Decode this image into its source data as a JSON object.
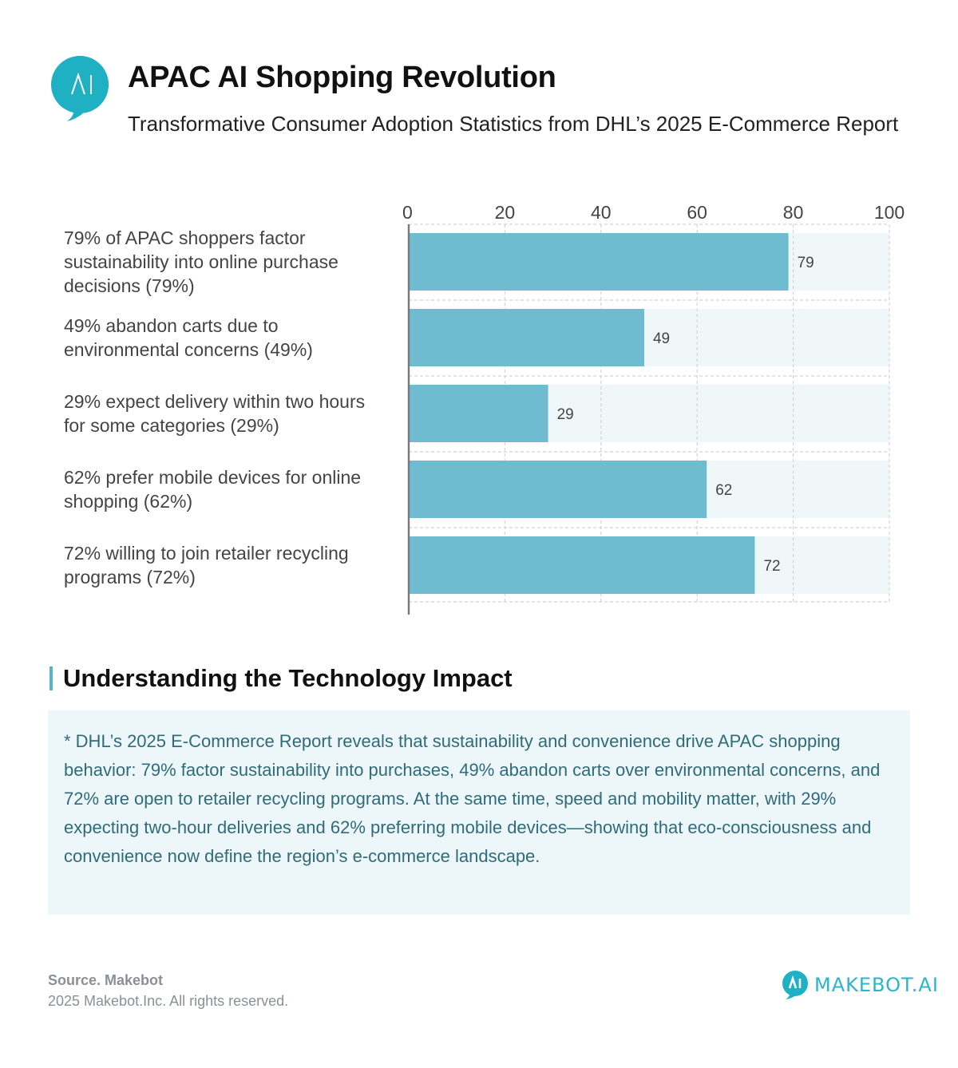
{
  "header": {
    "logo_icon": "ai-speech-bubble-icon",
    "logo_text": "AI",
    "title": "APAC AI Shopping Revolution",
    "subtitle": "Transformative Consumer Adoption Statistics from DHL’s 2025 E-Commerce Report"
  },
  "colors": {
    "bar": "#6fbbd0",
    "bar_track": "#eff7f9",
    "accent": "#5ab3c8",
    "brand": "#2bb5c8",
    "note_text": "#2f6b7a",
    "note_bg": "#edf6f8"
  },
  "chart_data": {
    "type": "bar",
    "orientation": "horizontal",
    "title": "",
    "xlabel": "",
    "ylabel": "",
    "xlim": [
      0,
      100
    ],
    "x_ticks": [
      "0",
      "20",
      "40",
      "60",
      "80",
      "100"
    ],
    "x_tick_values": [
      0,
      20,
      40,
      60,
      80,
      100
    ],
    "grid": true,
    "axis_position": "top",
    "categories": [
      [
        "79% of APAC shoppers factor",
        "sustainability into online purchase",
        "decisions (79%)"
      ],
      [
        "49% abandon carts due to",
        "environmental concerns (49%)"
      ],
      [
        "29% expect delivery within two hours",
        "for some categories (29%)"
      ],
      [
        "62% prefer mobile devices for online",
        "shopping (62%)"
      ],
      [
        "72% willing to join retailer recycling",
        "programs (72%)"
      ]
    ],
    "values": [
      79,
      49,
      29,
      62,
      72
    ],
    "data_labels": [
      "79",
      "49",
      "29",
      "62",
      "72"
    ],
    "max": 100
  },
  "section": {
    "title": "Understanding the Technology Impact",
    "note": "* DHL’s 2025 E-Commerce Report reveals that sustainability and convenience drive APAC shopping behavior: 79% factor sustainability into purchases, 49% abandon carts over environmental concerns, and 72% are open to retailer recycling programs. At the same time, speed and mobility matter, with 29% expecting two-hour deliveries and 62% preferring mobile devices—showing that eco-consciousness and convenience now define the region’s e-commerce landscape."
  },
  "footer": {
    "source": "Source. Makebot",
    "copyright": "2025 Makebot.Inc. All rights reserved.",
    "brand_icon": "makebot-logo-icon",
    "brand_icon_text": "AI",
    "brand_name": "MAKEBOT.AI"
  }
}
